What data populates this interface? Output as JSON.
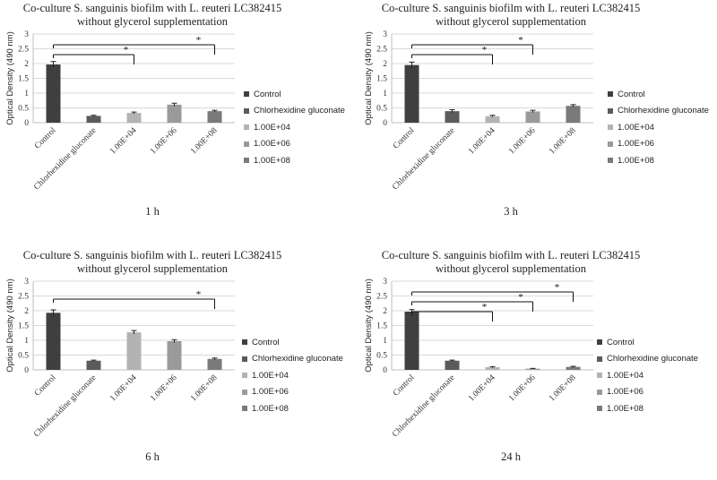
{
  "colors": {
    "Control": "#3f3f3f",
    "Chlorhexidine gluconate": "#5b5b5b",
    "1.00E+04": "#b3b3b3",
    "1.00E+06": "#9a9a9a",
    "1.00E+08": "#7a7a7a"
  },
  "legend": [
    "Control",
    "Chlorhexidine gluconate",
    "1.00E+04",
    "1.00E+06",
    "1.00E+08"
  ],
  "chart_data": [
    {
      "type": "bar",
      "title_line1": "Co-culture S. sanguinis biofilm with L. reuteri LC382415",
      "title_line2": "without glycerol supplementation",
      "caption": "1 h",
      "ylabel": "Optical Density (490 nm)",
      "ylim": [
        0,
        3
      ],
      "yticks": [
        "0",
        "0.5",
        "1",
        "1.5",
        "2",
        "2.5",
        "3"
      ],
      "categories": [
        "Control",
        "Chlorhexidine gluconate",
        "1.00E+04",
        "1.00E+06",
        "1.00E+08"
      ],
      "values": [
        1.97,
        0.23,
        0.33,
        0.61,
        0.39
      ],
      "errors": [
        0.1,
        0.02,
        0.03,
        0.05,
        0.03
      ],
      "significance": [
        {
          "to": "1.00E+04",
          "label": "*"
        },
        {
          "to": "1.00E+08",
          "label": "*"
        }
      ]
    },
    {
      "type": "bar",
      "title_line1": "Co-culture S. sanguinis biofilm with L. reuteri LC382415",
      "title_line2": "without glycerol supplementation",
      "caption": "3 h",
      "ylabel": "Optical Density (490 nm)",
      "ylim": [
        0,
        3
      ],
      "yticks": [
        "0",
        "0.5",
        "1",
        "1.5",
        "2",
        "2.5",
        "3"
      ],
      "categories": [
        "Control",
        "Chlorhexidine gluconate",
        "1.00E+04",
        "1.00E+06",
        "1.00E+08"
      ],
      "values": [
        1.95,
        0.39,
        0.22,
        0.38,
        0.57
      ],
      "errors": [
        0.1,
        0.05,
        0.03,
        0.04,
        0.04
      ],
      "significance": [
        {
          "to": "1.00E+04",
          "label": "*"
        },
        {
          "to": "1.00E+06",
          "label": "*"
        }
      ]
    },
    {
      "type": "bar",
      "title_line1": "Co-culture S. sanguinis biofilm with L. reuteri LC382415",
      "title_line2": "without glycerol supplementation",
      "caption": "6 h",
      "ylabel": "Optical Density (490 nm)",
      "ylim": [
        0,
        3
      ],
      "yticks": [
        "0",
        "0.5",
        "1",
        "1.5",
        "2",
        "2.5",
        "3"
      ],
      "categories": [
        "Control",
        "Chlorhexidine gluconate",
        "1.00E+04",
        "1.00E+06",
        "1.00E+08"
      ],
      "values": [
        1.93,
        0.31,
        1.27,
        0.97,
        0.37
      ],
      "errors": [
        0.1,
        0.02,
        0.06,
        0.05,
        0.03
      ],
      "significance": [
        {
          "to": "1.00E+08",
          "label": "*"
        }
      ]
    },
    {
      "type": "bar",
      "title_line1": "Co-culture S. sanguinis biofilm with L. reuteri LC382415",
      "title_line2": "without glycerol supplementation",
      "caption": "24 h",
      "ylabel": "Optical Density (490 nm)",
      "ylim": [
        0,
        3
      ],
      "yticks": [
        "0",
        "0.5",
        "1",
        "1.5",
        "2",
        "2.5",
        "3"
      ],
      "categories": [
        "Control",
        "Chlorhexidine gluconate",
        "1.00E+04",
        "1.00E+06",
        "1.00E+08"
      ],
      "values": [
        1.97,
        0.31,
        0.09,
        0.04,
        0.1
      ],
      "errors": [
        0.07,
        0.02,
        0.02,
        0.01,
        0.02
      ],
      "significance": [
        {
          "to": "1.00E+04",
          "label": "*"
        },
        {
          "to": "1.00E+06",
          "label": "*"
        },
        {
          "to": "1.00E+08",
          "label": "*"
        }
      ]
    }
  ]
}
